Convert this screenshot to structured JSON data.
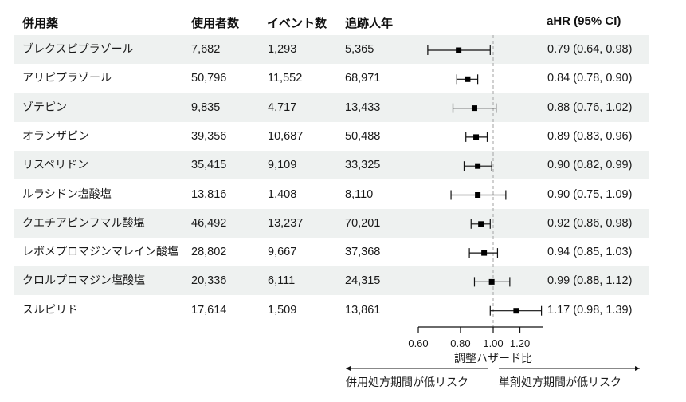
{
  "header": {
    "drug": "併用薬",
    "users": "使用者数",
    "events": "イベント数",
    "person_years": "追跡人年",
    "ahr": "aHR (95% CI)"
  },
  "rows": [
    {
      "drug": "ブレクスピプラゾール",
      "users": "7,682",
      "events": "1,293",
      "person_years": "5,365",
      "ahr_text": "0.79 (0.64, 0.98)",
      "hr": 0.79,
      "lo": 0.64,
      "hi": 0.98
    },
    {
      "drug": "アリピプラゾール",
      "users": "50,796",
      "events": "11,552",
      "person_years": "68,971",
      "ahr_text": "0.84 (0.78, 0.90)",
      "hr": 0.84,
      "lo": 0.78,
      "hi": 0.9
    },
    {
      "drug": "ゾテピン",
      "users": "9,835",
      "events": "4,717",
      "person_years": "13,433",
      "ahr_text": "0.88 (0.76, 1.02)",
      "hr": 0.88,
      "lo": 0.76,
      "hi": 1.02
    },
    {
      "drug": "オランザピン",
      "users": "39,356",
      "events": "10,687",
      "person_years": "50,488",
      "ahr_text": "0.89 (0.83, 0.96)",
      "hr": 0.89,
      "lo": 0.83,
      "hi": 0.96
    },
    {
      "drug": "リスペリドン",
      "users": "35,415",
      "events": "9,109",
      "person_years": "33,325",
      "ahr_text": "0.90 (0.82, 0.99)",
      "hr": 0.9,
      "lo": 0.82,
      "hi": 0.99
    },
    {
      "drug": "ルラシドン塩酸塩",
      "users": "13,816",
      "events": "1,408",
      "person_years": "8,110",
      "ahr_text": "0.90 (0.75, 1.09)",
      "hr": 0.9,
      "lo": 0.75,
      "hi": 1.09
    },
    {
      "drug": "クエチアピンフマル酸塩",
      "users": "46,492",
      "events": "13,237",
      "person_years": "70,201",
      "ahr_text": "0.92 (0.86, 0.98)",
      "hr": 0.92,
      "lo": 0.86,
      "hi": 0.98
    },
    {
      "drug": "レボメプロマジンマレイン酸塩",
      "users": "28,802",
      "events": "9,667",
      "person_years": "37,368",
      "ahr_text": "0.94 (0.85, 1.03)",
      "hr": 0.94,
      "lo": 0.85,
      "hi": 1.03
    },
    {
      "drug": "クロルプロマジン塩酸塩",
      "users": "20,336",
      "events": "6,111",
      "person_years": "24,315",
      "ahr_text": "0.99 (0.88, 1.12)",
      "hr": 0.99,
      "lo": 0.88,
      "hi": 1.12
    },
    {
      "drug": "スルピリド",
      "users": "17,614",
      "events": "1,509",
      "person_years": "13,861",
      "ahr_text": "1.17 (0.98, 1.39)",
      "hr": 1.17,
      "lo": 0.98,
      "hi": 1.39
    }
  ],
  "axis": {
    "ticks": [
      "0.60",
      "0.80",
      "1.00",
      "1.20"
    ],
    "title": "調整ハザード比",
    "left_label": "併用処方期間が低リスク",
    "right_label": "単剤処方期間が低リスク"
  },
  "colors": {
    "row_shade": "#eef1f0",
    "ref_line": "#b0b0b0",
    "marker": "#000000"
  },
  "chart_data": {
    "type": "forest",
    "title": "",
    "xlabel": "調整ハザード比",
    "xscale": "log",
    "xlim": [
      0.6,
      1.4
    ],
    "xticks": [
      0.6,
      0.8,
      1.0,
      1.2
    ],
    "reference_line": 1.0,
    "categories": [
      "ブレクスピプラゾール",
      "アリピプラゾール",
      "ゾテピン",
      "オランザピン",
      "リスペリドン",
      "ルラシドン塩酸塩",
      "クエチアピンフマル酸塩",
      "レボメプロマジンマレイン酸塩",
      "クロルプロマジン塩酸塩",
      "スルピリド"
    ],
    "series": [
      {
        "name": "aHR",
        "values": [
          0.79,
          0.84,
          0.88,
          0.89,
          0.9,
          0.9,
          0.92,
          0.94,
          0.99,
          1.17
        ]
      },
      {
        "name": "CI lower",
        "values": [
          0.64,
          0.78,
          0.76,
          0.83,
          0.82,
          0.75,
          0.86,
          0.85,
          0.88,
          0.98
        ]
      },
      {
        "name": "CI upper",
        "values": [
          0.98,
          0.9,
          1.02,
          0.96,
          0.99,
          1.09,
          0.98,
          1.03,
          1.12,
          1.39
        ]
      }
    ],
    "table_columns": [
      "併用薬",
      "使用者数",
      "イベント数",
      "追跡人年",
      "aHR (95% CI)"
    ],
    "annotations": [
      "併用処方期間が低リスク",
      "単剤処方期間が低リスク"
    ]
  }
}
